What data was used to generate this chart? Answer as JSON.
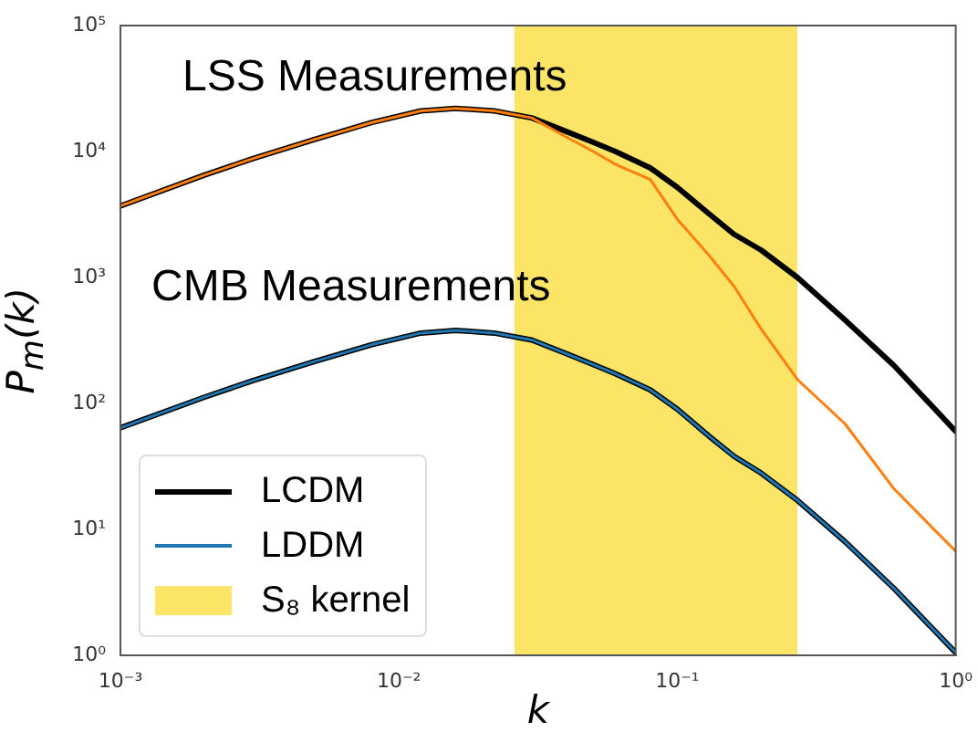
{
  "chart_data": {
    "type": "line",
    "xlabel": "k",
    "ylabel": "P$_{m}$(k)",
    "log": "xy",
    "grid": false,
    "legend": "bottom left",
    "marker": "none",
    "line_style": "solid",
    "xlim": [
      0.001,
      1
    ],
    "ylim": [
      1,
      100000
    ],
    "xticks": [
      {
        "value": 0.001,
        "label": "10⁻³"
      },
      {
        "value": 0.01,
        "label": "10⁻²"
      },
      {
        "value": 0.1,
        "label": "10⁻¹"
      },
      {
        "value": 1,
        "label": "10⁰"
      }
    ],
    "yticks": [
      {
        "value": 1,
        "label": "10⁰"
      },
      {
        "value": 10,
        "label": "10¹"
      },
      {
        "value": 100,
        "label": "10²"
      },
      {
        "value": 1000,
        "label": "10³"
      },
      {
        "value": 10000,
        "label": "10⁴"
      },
      {
        "value": 100000,
        "label": "10⁵"
      }
    ],
    "x": [
      0.001,
      0.002,
      0.003,
      0.005,
      0.008,
      0.012,
      0.016,
      0.022,
      0.03,
      0.04,
      0.05,
      0.06,
      0.08,
      0.1,
      0.13,
      0.16,
      0.2,
      0.27,
      0.4,
      0.6,
      1
    ],
    "series": [
      {
        "color": "#000000",
        "values": [
          3700,
          6500,
          8800,
          12500,
          17000,
          21000,
          22000,
          21000,
          18500,
          14400,
          11800,
          10000,
          7400,
          5200,
          3200,
          2200,
          1650,
          1000,
          460,
          200,
          60
        ]
      },
      {
        "color": "#ff7f0e",
        "values": [
          3700,
          6500,
          8800,
          12500,
          17000,
          21000,
          22000,
          21000,
          18500,
          13000,
          10000,
          7900,
          6000,
          2900,
          1500,
          850,
          390,
          155,
          69,
          21,
          6.7
        ]
      },
      {
        "name": "LCDM",
        "color": "#000000",
        "values": [
          64,
          112,
          152,
          216,
          293,
          362,
          380,
          362,
          319,
          248,
          203,
          172,
          128,
          90,
          55,
          38,
          28,
          17,
          8,
          3.4,
          1.05
        ]
      },
      {
        "name": "LDDM",
        "color": "#1f77b4",
        "values": [
          64,
          112,
          152,
          216,
          293,
          362,
          380,
          362,
          319,
          248,
          203,
          172,
          128,
          90,
          55,
          38,
          28,
          17,
          8,
          3.4,
          1.05
        ]
      }
    ],
    "bands": [
      {
        "axis": "x",
        "from": 0.026,
        "to": 0.27,
        "label": "S₈ kernel",
        "color": "#fce566"
      }
    ],
    "annotations": [
      "LSS Measurements",
      "CMB Measurements"
    ]
  }
}
